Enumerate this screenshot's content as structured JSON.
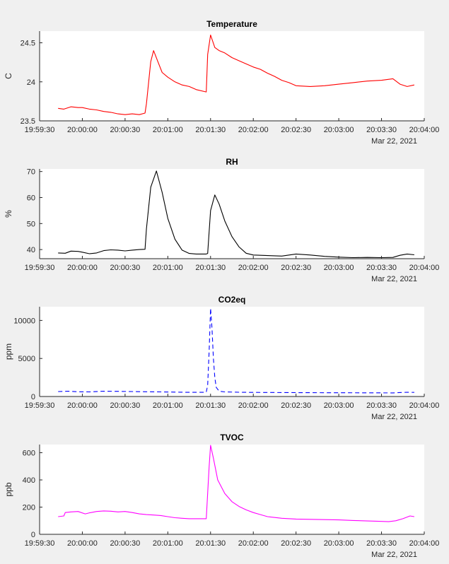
{
  "chart_data": [
    {
      "type": "line",
      "title": "Temperature",
      "ylabel": "C",
      "xlabel": "",
      "date_label": "Mar 22, 2021",
      "xlim": [
        "19:59:30",
        "20:04:00"
      ],
      "ylim": [
        23.5,
        24.65
      ],
      "x_ticks": [
        "19:59:30",
        "20:00:00",
        "20:00:30",
        "20:01:00",
        "20:01:30",
        "20:02:00",
        "20:02:30",
        "20:03:00",
        "20:03:30",
        "20:04:00"
      ],
      "y_ticks": [
        "23.5",
        "24",
        "24.5"
      ],
      "y_tick_values": [
        23.5,
        24.0,
        24.5
      ],
      "style": {
        "color": "#ff0000",
        "dash": "solid"
      },
      "x": [
        "19:59:43",
        "19:59:47",
        "19:59:52",
        "19:59:57",
        "20:00:00",
        "20:00:05",
        "20:00:10",
        "20:00:15",
        "20:00:20",
        "20:00:25",
        "20:00:30",
        "20:00:35",
        "20:00:40",
        "20:00:44",
        "20:00:45",
        "20:00:48",
        "20:00:50",
        "20:00:53",
        "20:00:56",
        "20:01:00",
        "20:01:05",
        "20:01:10",
        "20:01:15",
        "20:01:20",
        "20:01:27",
        "20:01:28",
        "20:01:30",
        "20:01:33",
        "20:01:36",
        "20:01:40",
        "20:01:45",
        "20:01:50",
        "20:01:55",
        "20:02:00",
        "20:02:05",
        "20:02:10",
        "20:02:15",
        "20:02:20",
        "20:02:25",
        "20:02:30",
        "20:02:40",
        "20:02:50",
        "20:03:00",
        "20:03:10",
        "20:03:20",
        "20:03:30",
        "20:03:38",
        "20:03:43",
        "20:03:48",
        "20:03:53"
      ],
      "values": [
        23.66,
        23.65,
        23.68,
        23.67,
        23.67,
        23.65,
        23.64,
        23.62,
        23.61,
        23.59,
        23.58,
        23.59,
        23.58,
        23.6,
        23.72,
        24.26,
        24.4,
        24.26,
        24.12,
        24.06,
        24.0,
        23.96,
        23.94,
        23.9,
        23.87,
        24.35,
        24.6,
        24.44,
        24.4,
        24.37,
        24.31,
        24.27,
        24.23,
        24.19,
        24.16,
        24.11,
        24.07,
        24.02,
        23.99,
        23.95,
        23.94,
        23.95,
        23.97,
        23.99,
        24.01,
        24.02,
        24.04,
        23.97,
        23.94,
        23.96
      ]
    },
    {
      "type": "line",
      "title": "RH",
      "ylabel": "%",
      "xlabel": "",
      "date_label": "Mar 22, 2021",
      "xlim": [
        "19:59:30",
        "20:04:00"
      ],
      "ylim": [
        36.5,
        71
      ],
      "x_ticks": [
        "19:59:30",
        "20:00:00",
        "20:00:30",
        "20:01:00",
        "20:01:30",
        "20:02:00",
        "20:02:30",
        "20:03:00",
        "20:03:30",
        "20:04:00"
      ],
      "y_ticks": [
        "40",
        "50",
        "60",
        "70"
      ],
      "y_tick_values": [
        40,
        50,
        60,
        70
      ],
      "style": {
        "color": "#000000",
        "dash": "solid"
      },
      "x": [
        "19:59:43",
        "19:59:48",
        "19:59:52",
        "19:59:57",
        "20:00:00",
        "20:00:05",
        "20:00:10",
        "20:00:15",
        "20:00:20",
        "20:00:25",
        "20:00:30",
        "20:00:35",
        "20:00:40",
        "20:00:44",
        "20:00:45",
        "20:00:48",
        "20:00:52",
        "20:00:56",
        "20:01:00",
        "20:01:05",
        "20:01:10",
        "20:01:15",
        "20:01:20",
        "20:01:27",
        "20:01:28",
        "20:01:30",
        "20:01:33",
        "20:01:36",
        "20:01:40",
        "20:01:45",
        "20:01:50",
        "20:01:55",
        "20:02:00",
        "20:02:10",
        "20:02:20",
        "20:02:30",
        "20:02:40",
        "20:02:50",
        "20:03:00",
        "20:03:10",
        "20:03:20",
        "20:03:30",
        "20:03:38",
        "20:03:43",
        "20:03:48",
        "20:03:53"
      ],
      "values": [
        38.7,
        38.6,
        39.4,
        39.3,
        39.0,
        38.4,
        38.7,
        39.6,
        39.9,
        39.8,
        39.5,
        39.8,
        40.0,
        40.1,
        48.0,
        64.0,
        70.2,
        62.0,
        52.0,
        44.0,
        39.8,
        38.5,
        38.3,
        38.3,
        38.5,
        55.0,
        61.0,
        57.5,
        51.0,
        45.0,
        41.0,
        38.6,
        37.9,
        37.7,
        37.5,
        38.3,
        37.9,
        37.4,
        37.1,
        36.9,
        37.0,
        36.9,
        37.0,
        37.8,
        38.3,
        38.0
      ]
    },
    {
      "type": "line",
      "title": "CO2eq",
      "ylabel": "ppm",
      "xlabel": "",
      "date_label": "Mar 22, 2021",
      "xlim": [
        "19:59:30",
        "20:04:00"
      ],
      "ylim": [
        0,
        11800
      ],
      "x_ticks": [
        "19:59:30",
        "20:00:00",
        "20:00:30",
        "20:01:00",
        "20:01:30",
        "20:02:00",
        "20:02:30",
        "20:03:00",
        "20:03:30",
        "20:04:00"
      ],
      "y_ticks": [
        "0",
        "5000",
        "10000"
      ],
      "y_tick_values": [
        0,
        5000,
        10000
      ],
      "style": {
        "color": "#0000ff",
        "dash": "dashed"
      },
      "x": [
        "19:59:43",
        "19:59:50",
        "19:59:57",
        "20:00:05",
        "20:00:15",
        "20:00:25",
        "20:00:35",
        "20:00:45",
        "20:00:55",
        "20:01:05",
        "20:01:15",
        "20:01:25",
        "20:01:27",
        "20:01:28",
        "20:01:29",
        "20:01:30",
        "20:01:31",
        "20:01:32",
        "20:01:33",
        "20:01:34",
        "20:01:36",
        "20:01:40",
        "20:01:50",
        "20:02:00",
        "20:02:20",
        "20:02:40",
        "20:03:00",
        "20:03:20",
        "20:03:38",
        "20:03:48",
        "20:03:53"
      ],
      "values": [
        650,
        700,
        620,
        600,
        700,
        680,
        650,
        620,
        600,
        580,
        550,
        550,
        560,
        1500,
        6000,
        11600,
        9000,
        5000,
        2500,
        1200,
        700,
        600,
        560,
        540,
        520,
        500,
        490,
        480,
        470,
        560,
        540
      ]
    },
    {
      "type": "line",
      "title": "TVOC",
      "ylabel": "ppb",
      "xlabel": "",
      "date_label": "Mar 22, 2021",
      "xlim": [
        "19:59:30",
        "20:04:00"
      ],
      "ylim": [
        0,
        660
      ],
      "x_ticks": [
        "19:59:30",
        "20:00:00",
        "20:00:30",
        "20:01:00",
        "20:01:30",
        "20:02:00",
        "20:02:30",
        "20:03:00",
        "20:03:30",
        "20:04:00"
      ],
      "y_ticks": [
        "0",
        "200",
        "400",
        "600"
      ],
      "y_tick_values": [
        0,
        200,
        400,
        600
      ],
      "style": {
        "color": "#ff00ff",
        "dash": "solid"
      },
      "x": [
        "19:59:43",
        "19:59:47",
        "19:59:48",
        "19:59:52",
        "19:59:57",
        "20:00:02",
        "20:00:05",
        "20:00:10",
        "20:00:15",
        "20:00:20",
        "20:00:25",
        "20:00:30",
        "20:00:35",
        "20:00:40",
        "20:00:45",
        "20:00:50",
        "20:00:55",
        "20:01:00",
        "20:01:05",
        "20:01:10",
        "20:01:15",
        "20:01:20",
        "20:01:27",
        "20:01:29",
        "20:01:30",
        "20:01:32",
        "20:01:35",
        "20:01:40",
        "20:01:45",
        "20:01:50",
        "20:01:55",
        "20:02:00",
        "20:02:05",
        "20:02:10",
        "20:02:20",
        "20:02:30",
        "20:02:40",
        "20:02:50",
        "20:03:00",
        "20:03:10",
        "20:03:20",
        "20:03:30",
        "20:03:35",
        "20:03:40",
        "20:03:45",
        "20:03:50",
        "20:03:53"
      ],
      "values": [
        130,
        135,
        160,
        165,
        168,
        150,
        158,
        168,
        172,
        170,
        165,
        168,
        160,
        150,
        145,
        142,
        138,
        130,
        122,
        118,
        115,
        115,
        115,
        500,
        655,
        560,
        400,
        300,
        240,
        205,
        180,
        160,
        145,
        130,
        118,
        112,
        110,
        108,
        106,
        102,
        98,
        95,
        93,
        100,
        115,
        135,
        130
      ]
    }
  ]
}
